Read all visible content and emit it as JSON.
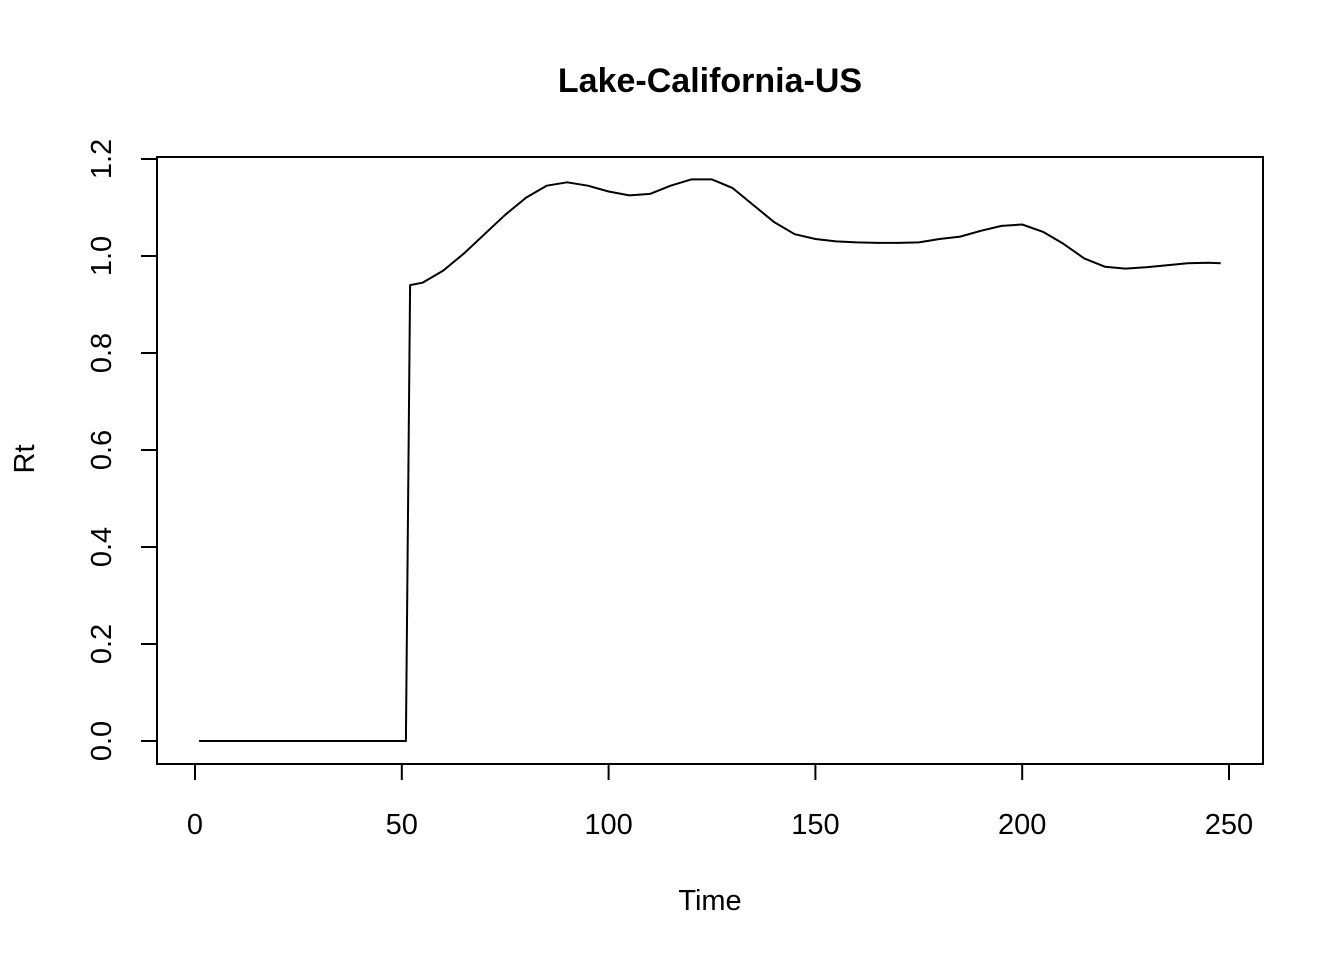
{
  "chart_data": {
    "type": "line",
    "title": "Lake-California-US",
    "xlabel": "Time",
    "ylabel": "Rt",
    "xlim": [
      0,
      250
    ],
    "ylim": [
      0.0,
      1.2
    ],
    "xticks": [
      "0",
      "50",
      "100",
      "150",
      "200",
      "250"
    ],
    "yticks": [
      "0.0",
      "0.2",
      "0.4",
      "0.6",
      "0.8",
      "1.0",
      "1.2"
    ],
    "grid": false,
    "series": [
      {
        "color": "#000000",
        "x": [
          1,
          10,
          20,
          30,
          40,
          51,
          52,
          55,
          60,
          65,
          70,
          75,
          80,
          85,
          90,
          95,
          100,
          105,
          110,
          115,
          120,
          125,
          130,
          135,
          140,
          145,
          150,
          155,
          160,
          165,
          170,
          175,
          180,
          185,
          190,
          195,
          200,
          205,
          210,
          215,
          220,
          225,
          230,
          235,
          240,
          245,
          248
        ],
        "y": [
          0.0,
          0.0,
          0.0,
          0.0,
          0.0,
          0.0,
          0.94,
          0.945,
          0.97,
          1.005,
          1.045,
          1.085,
          1.12,
          1.145,
          1.152,
          1.145,
          1.133,
          1.125,
          1.128,
          1.145,
          1.158,
          1.158,
          1.14,
          1.105,
          1.07,
          1.045,
          1.035,
          1.03,
          1.028,
          1.027,
          1.027,
          1.028,
          1.035,
          1.04,
          1.052,
          1.062,
          1.065,
          1.05,
          1.025,
          0.995,
          0.978,
          0.974,
          0.977,
          0.981,
          0.985,
          0.986,
          0.985
        ]
      }
    ]
  }
}
